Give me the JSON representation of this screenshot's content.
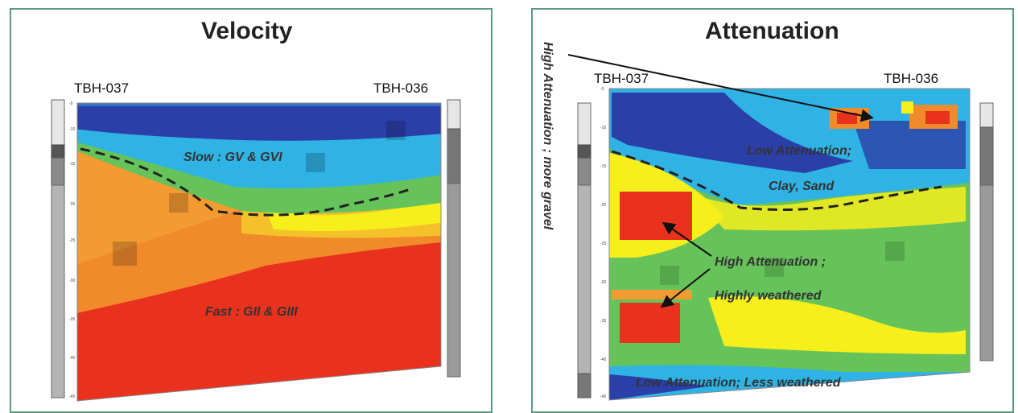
{
  "panels": [
    {
      "title": "Velocity",
      "left_borehole": "TBH-037",
      "right_borehole": "TBH-036",
      "annotations": [
        "Slow : GV & GVI",
        "Fast : GII & GIII"
      ],
      "depth_ticks": [
        "-5",
        "-10",
        "-15",
        "-20",
        "-25",
        "-30",
        "-35",
        "-40",
        "-45"
      ]
    },
    {
      "title": "Attenuation",
      "left_borehole": "TBH-037",
      "right_borehole": "TBH-036",
      "annotations": [
        "Low Attenuation;",
        "Clay, Sand",
        "High Attenuation ;",
        "Highly weathered",
        "Low Attenuation; Less weathered"
      ],
      "side_label": "High Attenuation ; more gravel",
      "depth_ticks": [
        "-5",
        "-10",
        "-15",
        "-20",
        "-25",
        "-30",
        "-35",
        "-40",
        "-45"
      ]
    }
  ],
  "colors": {
    "frame": "#5a9a80",
    "slow": "#2b3fa8",
    "fast": "#e8321e",
    "medium": "#66c35a",
    "yellow": "#f6ef1c"
  }
}
